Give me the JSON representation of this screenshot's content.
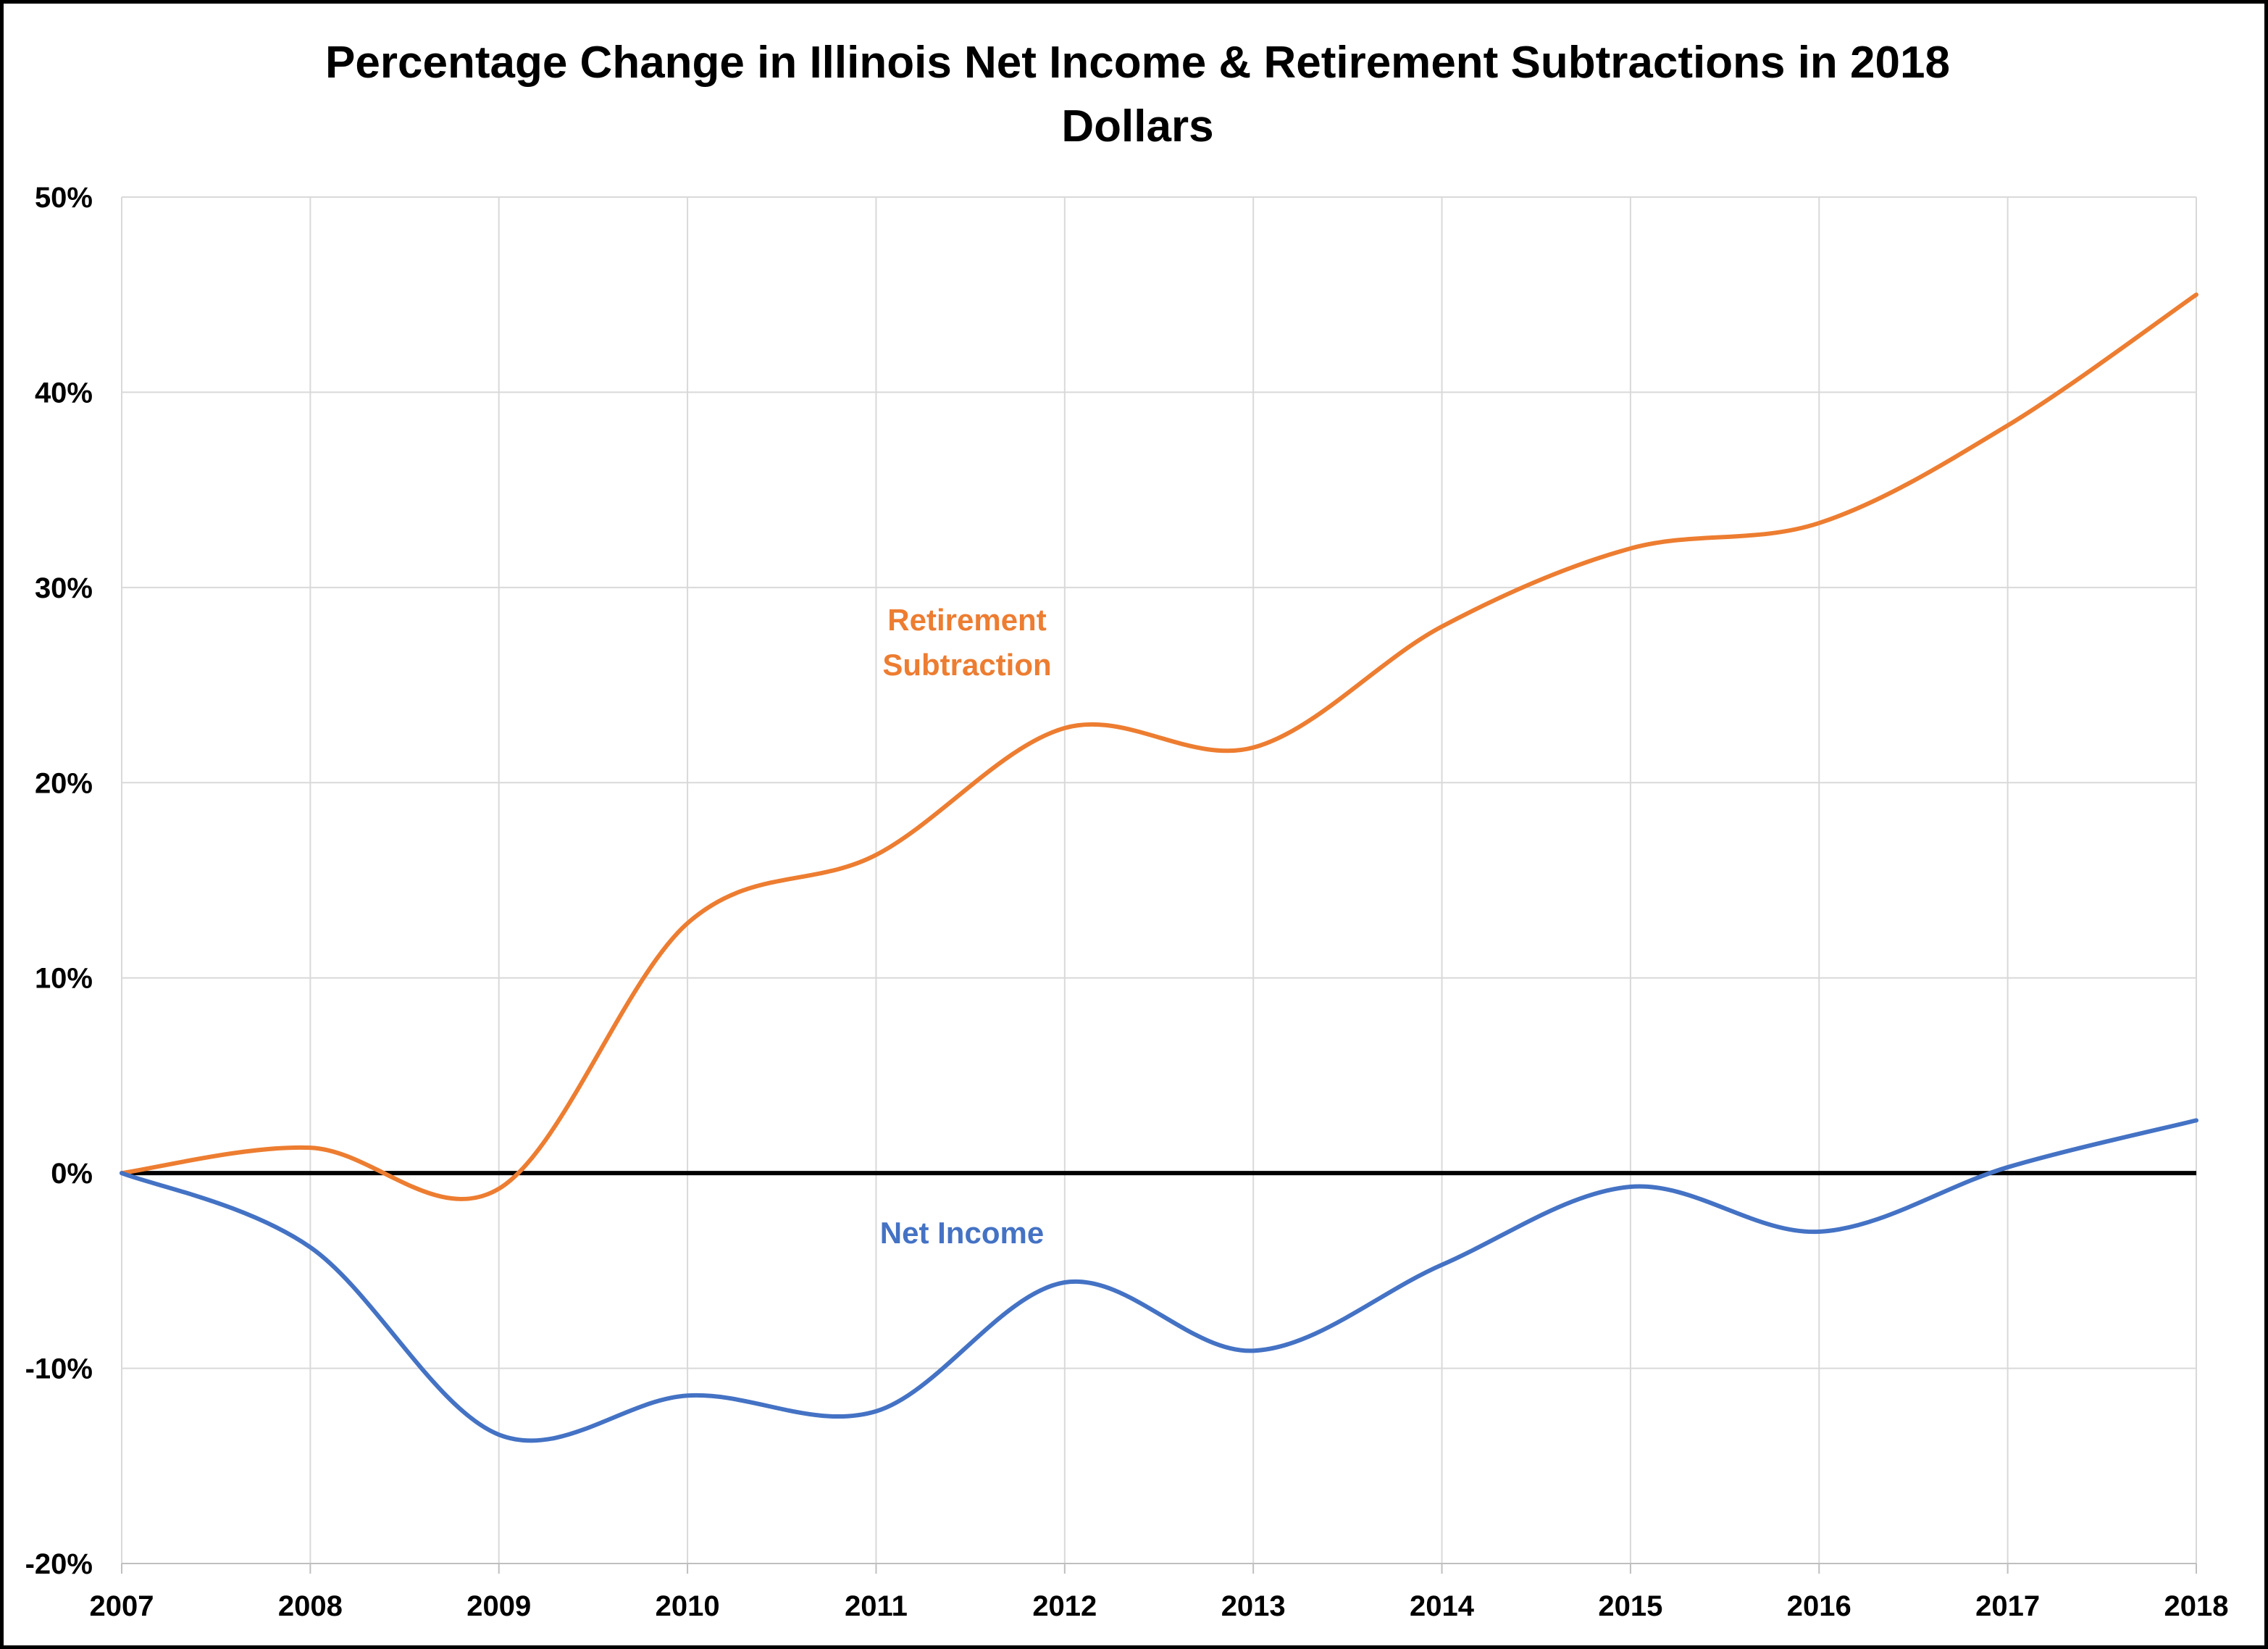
{
  "chart_data": {
    "type": "line",
    "title_line1": "Percentage Change in Illinois Net Income & Retirement Subtractions in 2018",
    "title_line2": "Dollars",
    "xlabel": "",
    "ylabel": "",
    "x": [
      2007,
      2008,
      2009,
      2010,
      2011,
      2012,
      2013,
      2014,
      2015,
      2016,
      2017,
      2018
    ],
    "x_tick_labels": [
      "2007",
      "2008",
      "2009",
      "2010",
      "2011",
      "2012",
      "2013",
      "2014",
      "2015",
      "2016",
      "2017",
      "2018"
    ],
    "ylim": [
      -20,
      50
    ],
    "y_ticks": [
      -20,
      -10,
      0,
      10,
      20,
      30,
      40,
      50
    ],
    "y_tick_labels": [
      "-20%",
      "-10%",
      "0%",
      "10%",
      "20%",
      "30%",
      "40%",
      "50%"
    ],
    "grid": true,
    "zero_line": true,
    "series": [
      {
        "name": "Retirement Subtraction",
        "label_lines": [
          "Retirement",
          "Subtraction"
        ],
        "color": "#ED7D31",
        "values": [
          0,
          1.3,
          -0.8,
          12.8,
          16.3,
          22.8,
          21.8,
          28.0,
          32.0,
          33.3,
          38.3,
          45.0
        ]
      },
      {
        "name": "Net Income",
        "label_lines": [
          "Net Income"
        ],
        "color": "#4472C4",
        "values": [
          0,
          -3.8,
          -13.4,
          -11.4,
          -12.2,
          -5.6,
          -9.1,
          -4.7,
          -0.7,
          -3.0,
          0.3,
          2.7
        ]
      }
    ],
    "zero_line_color": "#000000",
    "grid_color": "#D9D9D9"
  }
}
